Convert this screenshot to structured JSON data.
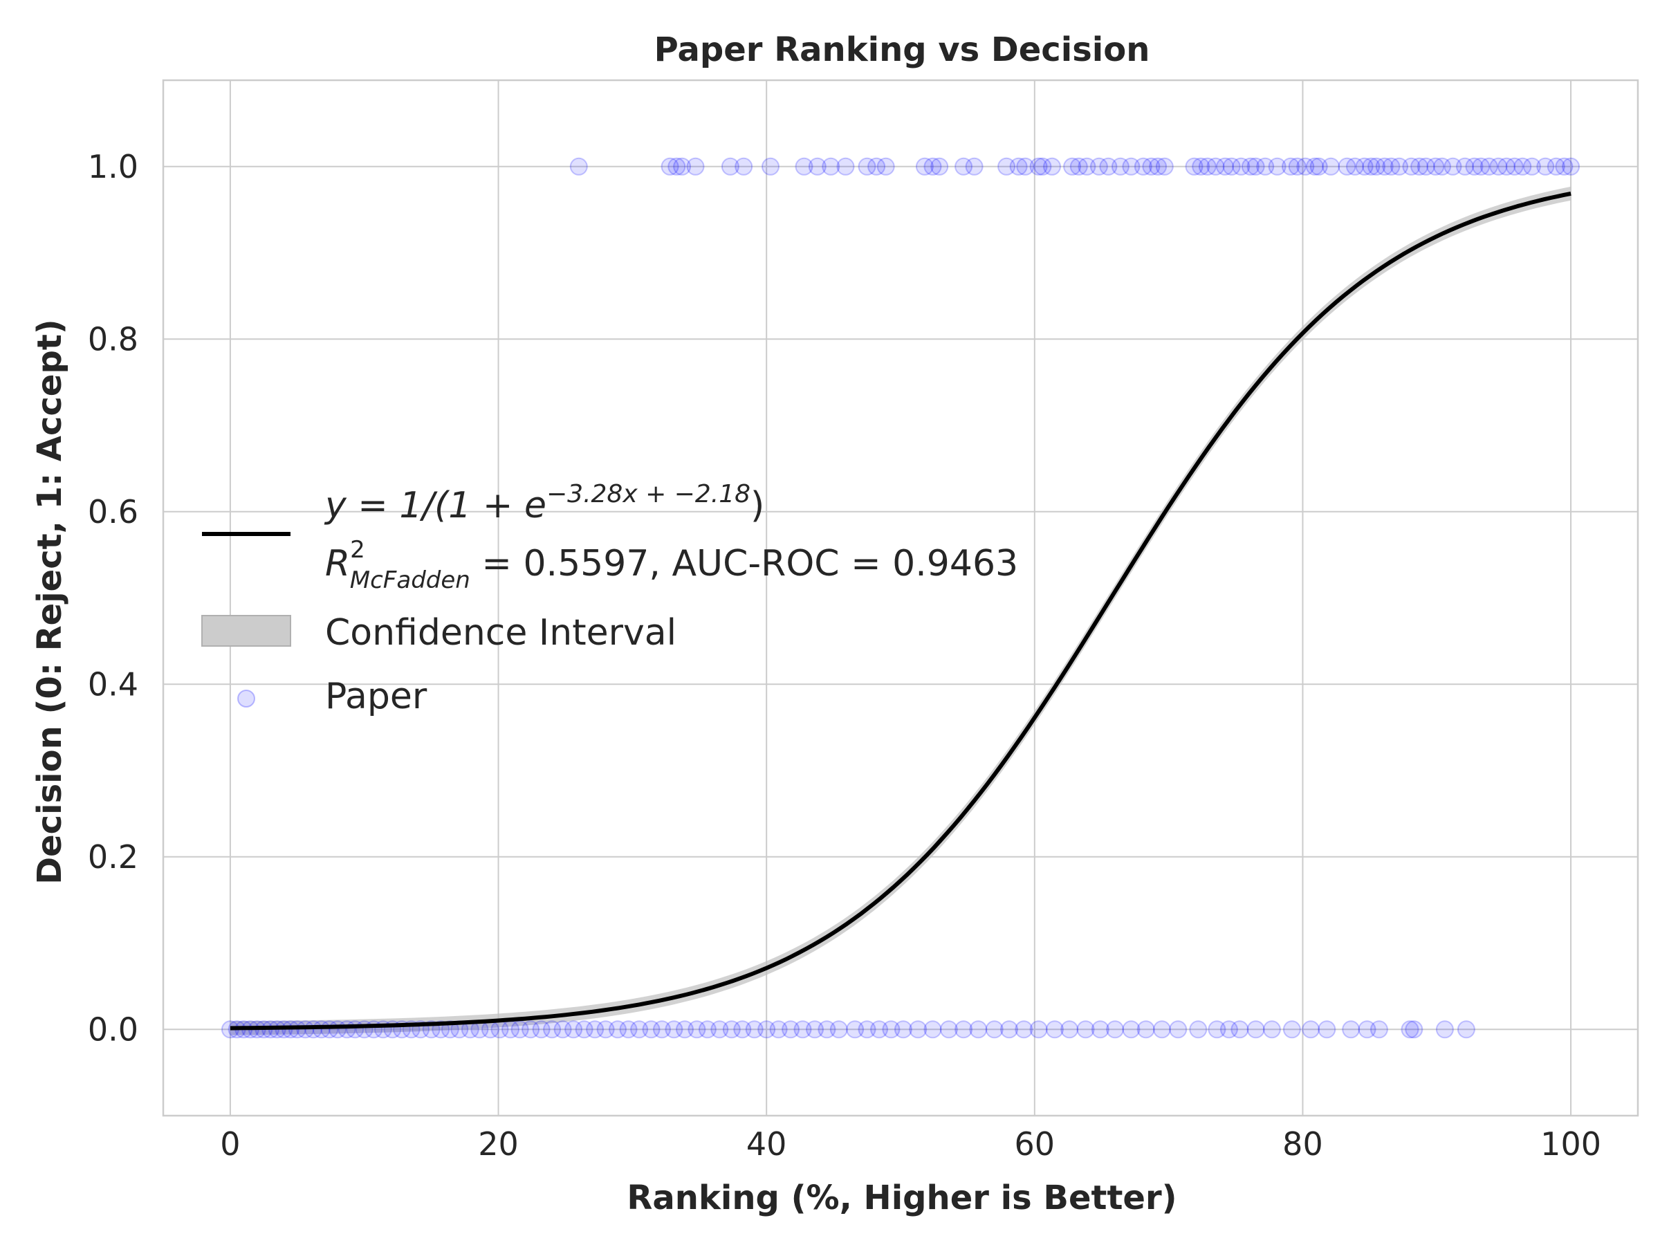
{
  "chart_data": {
    "type": "scatter",
    "title": "Paper Ranking vs Decision",
    "xlabel": "Ranking (%, Higher is Better)",
    "ylabel": "Decision (0: Reject, 1: Accept)",
    "xlim": [
      -5,
      105
    ],
    "ylim": [
      -0.1,
      1.1
    ],
    "xticks": [
      0,
      20,
      40,
      60,
      80,
      100
    ],
    "xtick_labels": [
      "0",
      "20",
      "40",
      "60",
      "80",
      "100"
    ],
    "yticks": [
      0.0,
      0.2,
      0.4,
      0.6,
      0.8,
      1.0
    ],
    "ytick_labels": [
      "0.0",
      "0.2",
      "0.4",
      "0.6",
      "0.8",
      "1.0"
    ],
    "grid": true,
    "legend_position": "center-left",
    "fit_curve": {
      "model": "logistic",
      "k": 0.1,
      "x0": 65.7,
      "legend_eq_prefix": "y = 1/(1 + e",
      "legend_eq_exp": "−3.28x + −2.18",
      "legend_eq_suffix": ")",
      "legend_r2_sym": "R",
      "legend_r2_sup": "2",
      "legend_r2_sub": "McFadden",
      "legend_r2_rest": " = 0.5597, AUC-ROC = 0.9463",
      "color": "#000000"
    },
    "confidence_band": {
      "name": "Confidence Interval",
      "half_width": 0.008,
      "color": "#bfbfbf"
    },
    "series": [
      {
        "name": "Paper",
        "color": "#0000ff",
        "points": {
          "accepted_y": 1,
          "accepted_x": [
            26,
            32.8,
            33.3,
            33.7,
            34.7,
            37.3,
            38.3,
            40.3,
            42.8,
            43.8,
            44.8,
            45.9,
            47.5,
            48.2,
            48.9,
            51.8,
            52.4,
            52.9,
            54.7,
            55.5,
            57.9,
            58.8,
            59.3,
            60.3,
            60.6,
            61.3,
            62.8,
            63.3,
            63.9,
            64.8,
            65.5,
            66.4,
            67.2,
            68.1,
            68.7,
            69.2,
            69.7,
            71.9,
            72.4,
            72.9,
            73.5,
            74.2,
            74.7,
            75.4,
            76.1,
            76.5,
            77.2,
            78.1,
            79.1,
            79.6,
            80.2,
            80.9,
            81.2,
            82.1,
            83.3,
            83.9,
            84.6,
            85.1,
            85.5,
            86.1,
            86.6,
            87.2,
            88.1,
            88.7,
            89.2,
            89.9,
            90.4,
            91.2,
            92.1,
            92.8,
            93.3,
            93.9,
            94.6,
            95.2,
            95.8,
            96.4,
            97.1,
            98.1,
            98.9,
            99.5,
            100
          ],
          "rejected_y": 0,
          "rejected_x": [
            0,
            0.5,
            1,
            1.5,
            2,
            2.5,
            3,
            3.5,
            4,
            4.5,
            5,
            5.6,
            6.2,
            6.8,
            7.4,
            8,
            8.7,
            9.3,
            10,
            10.7,
            11.4,
            12.1,
            12.8,
            13.5,
            14.2,
            15,
            15.7,
            16.4,
            17.1,
            17.9,
            18.6,
            19.4,
            20.1,
            20.9,
            21.6,
            22.4,
            23.2,
            24,
            24.8,
            25.6,
            26.4,
            27.2,
            28,
            28.9,
            29.7,
            30.5,
            31.4,
            32.2,
            33.1,
            33.9,
            34.8,
            35.6,
            36.5,
            37.4,
            38.2,
            39.1,
            40,
            40.9,
            41.8,
            42.7,
            43.6,
            44.5,
            45.4,
            46.6,
            47.5,
            48.4,
            49.3,
            50.2,
            51.3,
            52.4,
            53.6,
            54.7,
            55.8,
            57,
            58.1,
            59.2,
            60.3,
            61.5,
            62.6,
            63.8,
            64.9,
            66,
            67.2,
            68.3,
            69.5,
            70.7,
            72.2,
            73.6,
            74.5,
            75.3,
            76.5,
            77.7,
            79.2,
            80.6,
            81.8,
            83.6,
            84.8,
            85.7,
            88,
            88.3,
            90.6,
            92.2
          ]
        }
      }
    ]
  }
}
